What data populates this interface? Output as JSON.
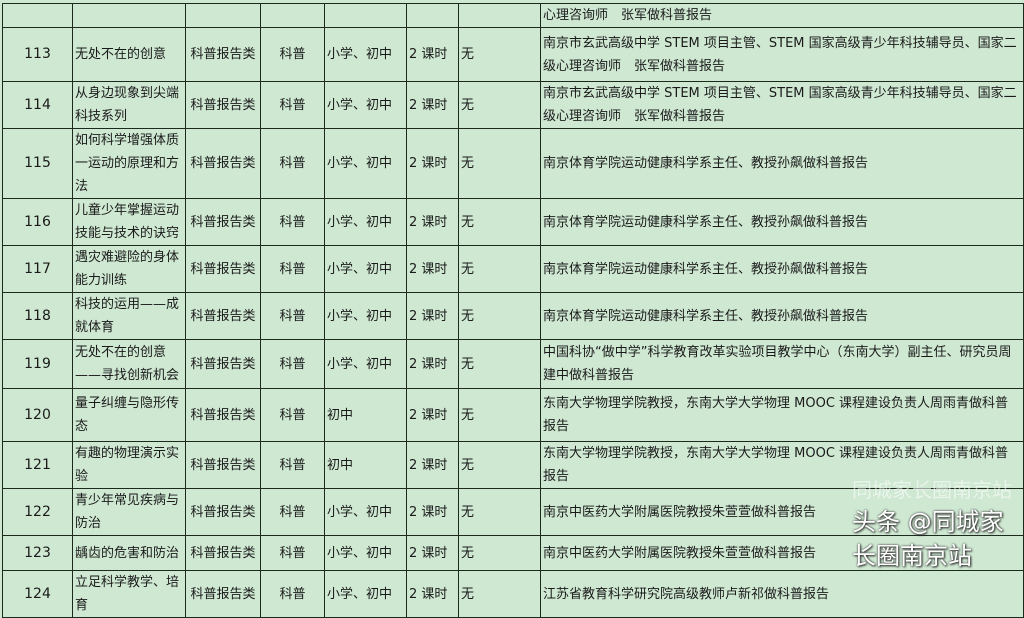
{
  "top_row": {
    "lecturer": "心理咨询师　张军做科普报告"
  },
  "rows": [
    {
      "no": "113",
      "title": "无处不在的创意",
      "type": "科普报告类",
      "field": "科普",
      "grade": "小学、初中",
      "hours": "2 课时",
      "req": "无",
      "lecturer": "南京市玄武高级中学 STEM 项目主管、STEM 国家高级青少年科技辅导员、国家二级心理咨询师　张军做科普报告"
    },
    {
      "no": "114",
      "title": "从身边现象到尖端科技系列",
      "type": "科普报告类",
      "field": "科普",
      "grade": "小学、初中",
      "hours": "2 课时",
      "req": "无",
      "lecturer": "南京市玄武高级中学 STEM 项目主管、STEM 国家高级青少年科技辅导员、国家二级心理咨询师　张军做科普报告"
    },
    {
      "no": "115",
      "title": "如何科学增强体质一运动的原理和方法",
      "type": "科普报告类",
      "field": "科普",
      "grade": "小学、初中",
      "hours": "2 课时",
      "req": "无",
      "lecturer": "南京体育学院运动健康科学系主任、教授孙飙做科普报告"
    },
    {
      "no": "116",
      "title": "儿童少年掌握运动技能与技术的诀窍",
      "type": "科普报告类",
      "field": "科普",
      "grade": "小学、初中",
      "hours": "2 课时",
      "req": "无",
      "lecturer": "南京体育学院运动健康科学系主任、教授孙飙做科普报告"
    },
    {
      "no": "117",
      "title": "遇灾难避险的身体能力训练",
      "type": "科普报告类",
      "field": "科普",
      "grade": "小学、初中",
      "hours": "2 课时",
      "req": "无",
      "lecturer": "南京体育学院运动健康科学系主任、教授孙飙做科普报告"
    },
    {
      "no": "118",
      "title": "科技的运用——成就体育",
      "type": "科普报告类",
      "field": "科普",
      "grade": "小学、初中",
      "hours": "2 课时",
      "req": "无",
      "lecturer": "南京体育学院运动健康科学系主任、教授孙飙做科普报告"
    },
    {
      "no": "119",
      "title": "无处不在的创意——寻找创新机会",
      "type": "科普报告类",
      "field": "科普",
      "grade": "小学、初中",
      "hours": "2 课时",
      "req": "无",
      "lecturer": "中国科协“做中学”科学教育改革实验项目教学中心（东南大学）副主任、研究员周建中做科普报告"
    },
    {
      "no": "120",
      "title": "量子纠缠与隐形传态",
      "type": "科普报告类",
      "field": "科普",
      "grade": "初中",
      "hours": "2 课时",
      "req": "无",
      "lecturer": "东南大学物理学院教授，东南大学大学物理 MOOC 课程建设负责人周雨青做科普报告"
    },
    {
      "no": "121",
      "title": "有趣的物理演示实验",
      "type": "科普报告类",
      "field": "科普",
      "grade": "初中",
      "hours": "2 课时",
      "req": "无",
      "lecturer": "东南大学物理学院教授，东南大学大学物理 MOOC 课程建设负责人周雨青做科普报告"
    },
    {
      "no": "122",
      "title": "青少年常见疾病与防治",
      "type": "科普报告类",
      "field": "科普",
      "grade": "小学、初中",
      "hours": "2 课时",
      "req": "无",
      "lecturer": "南京中医药大学附属医院教授朱萱萱做科普报告"
    },
    {
      "no": "123",
      "title": "龋齿的危害和防治",
      "type": "科普报告类",
      "field": "科普",
      "grade": "小学、初中",
      "hours": "2 课时",
      "req": "无",
      "lecturer": "南京中医药大学附属医院教授朱萱萱做科普报告"
    },
    {
      "no": "124",
      "title": "立足科学教学、培育",
      "type": "科普报告类",
      "field": "科普",
      "grade": "小学、初中",
      "hours": "2 课时",
      "req": "无",
      "lecturer": "江苏省教育科学研究院高级教师卢新祁做科普报告"
    }
  ],
  "watermark": {
    "faded": "同城家长圈南京站",
    "main": "头条 @同城家长圈南京站"
  },
  "colors": {
    "background": "#cfe8d2",
    "border": "#1c2a1e"
  }
}
